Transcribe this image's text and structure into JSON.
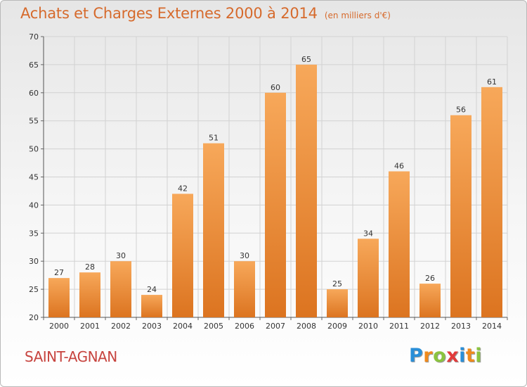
{
  "title": "Achats et Charges Externes 2000 à 2014",
  "unit": "(en milliers d'€)",
  "commune": "SAINT-AGNAN",
  "logo": {
    "letters": [
      "P",
      "r",
      "o",
      "x",
      "i",
      "t",
      "i"
    ],
    "colors": [
      "#2a8fd8",
      "#f08a1c",
      "#8bc43f",
      "#e23b3b",
      "#2a8fd8",
      "#f08a1c",
      "#8bc43f"
    ]
  },
  "colors": {
    "bar_top": "#f7a85a",
    "bar_bottom": "#dc7420",
    "grid": "#d2d2d2"
  },
  "chart_data": {
    "type": "bar",
    "categories": [
      "2000",
      "2001",
      "2002",
      "2003",
      "2004",
      "2005",
      "2006",
      "2007",
      "2008",
      "2009",
      "2010",
      "2011",
      "2012",
      "2013",
      "2014"
    ],
    "values": [
      27,
      28,
      30,
      24,
      42,
      51,
      30,
      60,
      65,
      25,
      34,
      46,
      26,
      56,
      61
    ],
    "ylim": [
      20,
      70
    ],
    "yticks": [
      20,
      25,
      30,
      35,
      40,
      45,
      50,
      55,
      60,
      65,
      70
    ],
    "grid": true,
    "data_labels": true
  }
}
